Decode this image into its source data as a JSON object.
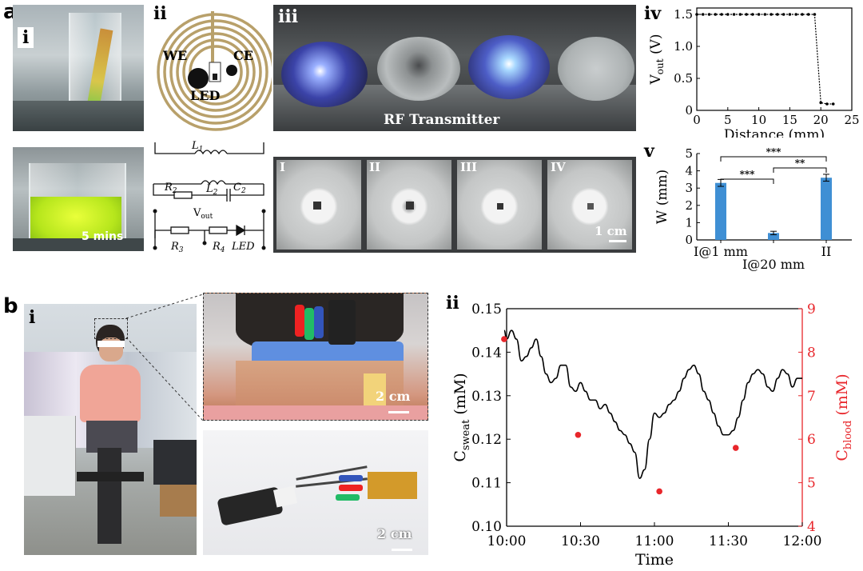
{
  "panel_a": {
    "label": "a",
    "sub_i": "i",
    "sub_ii": "ii",
    "sub_iii": "iii",
    "sub_iv": "iv",
    "sub_v": "v",
    "time_label": "5 mins",
    "coil_we": "WE",
    "coil_ce": "CE",
    "coil_led": "LED",
    "rf_label": "RF Transmitter",
    "dish_labels": [
      "I",
      "II",
      "III",
      "IV"
    ],
    "scale_1cm": "1 cm",
    "circuit": {
      "L1": "L",
      "L1_sub": "1",
      "L2": "L",
      "L2_sub": "2",
      "R2": "R",
      "R2_sub": "2",
      "C2": "C",
      "C2_sub": "2",
      "Vout": "V",
      "Vout_sub": "out",
      "R3": "R",
      "R3_sub": "3",
      "R4": "R",
      "R4_sub": "4",
      "LED": "LED"
    }
  },
  "panel_b": {
    "label": "b",
    "sub_i": "i",
    "sub_ii": "ii",
    "scale_2cm_top": "2 cm",
    "scale_2cm_bottom": "2 cm"
  },
  "chart_data": [
    {
      "type": "line",
      "id": "a-iv",
      "x": [
        0,
        1,
        2,
        3,
        4,
        5,
        6,
        7,
        8,
        9,
        10,
        11,
        12,
        13,
        14,
        15,
        16,
        17,
        18,
        19,
        20,
        21,
        22
      ],
      "y": [
        1.5,
        1.5,
        1.5,
        1.5,
        1.5,
        1.5,
        1.5,
        1.5,
        1.5,
        1.5,
        1.5,
        1.5,
        1.5,
        1.5,
        1.5,
        1.5,
        1.5,
        1.5,
        1.5,
        1.5,
        0.12,
        0.1,
        0.1
      ],
      "xlabel": "Distance (mm)",
      "ylabel_main": "V",
      "ylabel_sub": "out",
      "ylabel_unit": " (V)",
      "xticks": [
        "0",
        "5",
        "10",
        "15",
        "20",
        "25"
      ],
      "yticks": [
        "0",
        "0.5",
        "1.0",
        "1.5"
      ],
      "xlim": [
        0,
        25
      ],
      "ylim": [
        0,
        1.6
      ]
    },
    {
      "type": "bar",
      "id": "a-v",
      "categories": [
        "I@1 mm",
        "I@20 mm",
        "II"
      ],
      "values": [
        3.3,
        0.4,
        3.6
      ],
      "errors": [
        0.2,
        0.1,
        0.2
      ],
      "ylabel": "W (mm)",
      "yticks": [
        "0",
        "1",
        "2",
        "3",
        "4",
        "5"
      ],
      "ylim": [
        0,
        5
      ],
      "significance": [
        "***",
        "**",
        "***"
      ],
      "bar_color": "#3f8fd4"
    },
    {
      "type": "line",
      "id": "b-ii",
      "xticks": [
        "10:00",
        "10:30",
        "11:00",
        "11:30",
        "12:00"
      ],
      "xlabel": "Time",
      "ylabel_left_main": "C",
      "ylabel_left_sub": "sweat",
      "ylabel_left_unit": " (mM)",
      "ylabel_right_main": "C",
      "ylabel_right_sub": "blood",
      "ylabel_right_unit": " (mM)",
      "yticks_left": [
        "0.10",
        "0.11",
        "0.12",
        "0.13",
        "0.14",
        "0.15"
      ],
      "yticks_right": [
        "4",
        "5",
        "6",
        "7",
        "8",
        "9"
      ],
      "ylim_left": [
        0.1,
        0.15
      ],
      "ylim_right": [
        4,
        9
      ],
      "xlim_minutes": [
        0,
        120
      ],
      "sweat_minutes": [
        -2,
        0,
        2,
        4,
        6,
        8,
        10,
        12,
        14,
        16,
        18,
        20,
        22,
        24,
        26,
        28,
        30,
        32,
        34,
        36,
        38,
        40,
        42,
        44,
        46,
        48,
        50,
        52,
        54,
        56,
        58,
        60,
        62,
        64,
        66,
        68,
        70,
        72,
        74,
        76,
        78,
        80,
        82,
        84,
        86,
        88,
        90,
        92,
        94,
        96,
        98,
        100,
        102,
        104,
        106,
        108,
        110,
        112,
        114,
        116,
        118,
        120
      ],
      "sweat_values": [
        0.145,
        0.143,
        0.145,
        0.143,
        0.138,
        0.139,
        0.141,
        0.143,
        0.139,
        0.135,
        0.133,
        0.134,
        0.137,
        0.137,
        0.132,
        0.131,
        0.133,
        0.131,
        0.129,
        0.129,
        0.127,
        0.128,
        0.126,
        0.124,
        0.122,
        0.121,
        0.119,
        0.117,
        0.111,
        0.113,
        0.12,
        0.126,
        0.125,
        0.126,
        0.128,
        0.129,
        0.131,
        0.134,
        0.136,
        0.137,
        0.135,
        0.131,
        0.129,
        0.126,
        0.123,
        0.121,
        0.121,
        0.122,
        0.125,
        0.129,
        0.133,
        0.135,
        0.136,
        0.135,
        0.132,
        0.131,
        0.134,
        0.136,
        0.135,
        0.132,
        0.134,
        0.134
      ],
      "blood_minutes": [
        -1,
        29,
        62,
        93
      ],
      "blood_values": [
        8.3,
        6.1,
        4.8,
        5.8
      ],
      "blood_color": "#e8262b"
    }
  ]
}
